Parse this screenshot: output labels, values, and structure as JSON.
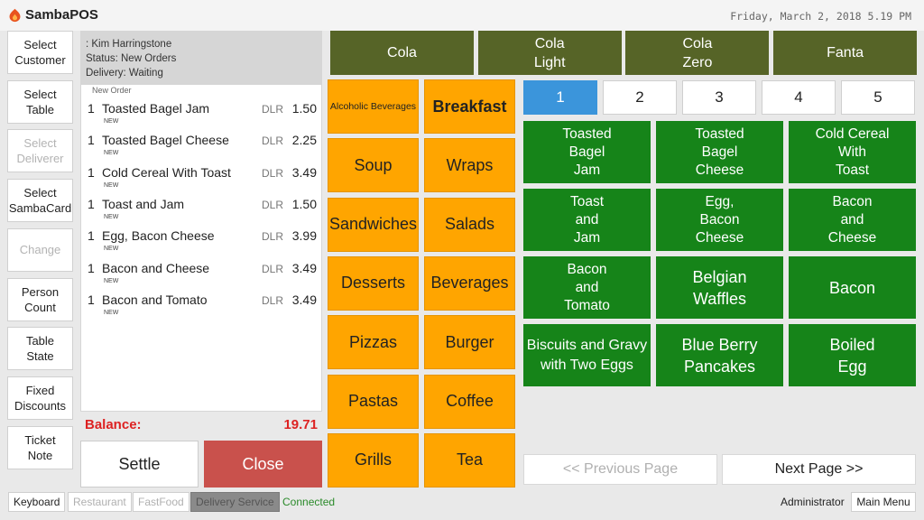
{
  "app": {
    "name": "SambaPOS",
    "datetime": "Friday, March 2, 2018 5.19 PM"
  },
  "commands": [
    {
      "label": "Select\nCustomer",
      "enabled": true
    },
    {
      "label": "Select\nTable",
      "enabled": true
    },
    {
      "label": "Select\nDeliverer",
      "enabled": false
    },
    {
      "label": "Select\nSambaCard",
      "enabled": true
    },
    {
      "label": "Change",
      "enabled": false
    },
    {
      "label": "Person\nCount",
      "enabled": true
    },
    {
      "label": "Table\nState",
      "enabled": true
    },
    {
      "label": "Fixed\nDiscounts",
      "enabled": true
    },
    {
      "label": "Ticket\nNote",
      "enabled": true
    }
  ],
  "ticket": {
    "customer": ": Kim Harringstone",
    "status": "Status: New Orders",
    "delivery": "Delivery: Waiting",
    "new_order_label": "New Order",
    "orders": [
      {
        "qty": "1",
        "name": "Toasted Bagel Jam",
        "tag": "NEW",
        "currency": "DLR",
        "price": "1.50"
      },
      {
        "qty": "1",
        "name": "Toasted Bagel Cheese",
        "tag": "NEW",
        "currency": "DLR",
        "price": "2.25"
      },
      {
        "qty": "1",
        "name": "Cold Cereal With Toast",
        "tag": "NEW",
        "currency": "DLR",
        "price": "3.49"
      },
      {
        "qty": "1",
        "name": "Toast and Jam",
        "tag": "NEW",
        "currency": "DLR",
        "price": "1.50"
      },
      {
        "qty": "1",
        "name": "Egg, Bacon Cheese",
        "tag": "NEW",
        "currency": "DLR",
        "price": "3.99"
      },
      {
        "qty": "1",
        "name": "Bacon and Cheese",
        "tag": "NEW",
        "currency": "DLR",
        "price": "3.49"
      },
      {
        "qty": "1",
        "name": "Bacon and Tomato",
        "tag": "NEW",
        "currency": "DLR",
        "price": "3.49"
      }
    ],
    "balance_label": "Balance:",
    "balance_value": "19.71",
    "settle_label": "Settle",
    "close_label": "Close"
  },
  "categories": [
    {
      "label": "Alcoholic Beverages",
      "style": "small"
    },
    {
      "label": "Breakfast",
      "style": "bold"
    },
    {
      "label": "Soup",
      "style": ""
    },
    {
      "label": "Wraps",
      "style": ""
    },
    {
      "label": "Sandwiches",
      "style": ""
    },
    {
      "label": "Salads",
      "style": ""
    },
    {
      "label": "Desserts",
      "style": ""
    },
    {
      "label": "Beverages",
      "style": ""
    },
    {
      "label": "Pizzas",
      "style": ""
    },
    {
      "label": "Burger",
      "style": ""
    },
    {
      "label": "Pastas",
      "style": ""
    },
    {
      "label": "Coffee",
      "style": ""
    },
    {
      "label": "Grills",
      "style": ""
    },
    {
      "label": "Tea",
      "style": ""
    }
  ],
  "top_products": [
    {
      "label": "Cola"
    },
    {
      "label": "Cola\nLight"
    },
    {
      "label": "Cola\nZero"
    },
    {
      "label": "Fanta"
    }
  ],
  "pages": [
    {
      "label": "1",
      "active": true
    },
    {
      "label": "2",
      "active": false
    },
    {
      "label": "3",
      "active": false
    },
    {
      "label": "4",
      "active": false
    },
    {
      "label": "5",
      "active": false
    }
  ],
  "products": [
    {
      "label": "Toasted\nBagel\nJam",
      "size": ""
    },
    {
      "label": "Toasted\nBagel\nCheese",
      "size": ""
    },
    {
      "label": "Cold Cereal\nWith\nToast",
      "size": ""
    },
    {
      "label": "Toast\nand\nJam",
      "size": ""
    },
    {
      "label": "Egg,\nBacon\nCheese",
      "size": ""
    },
    {
      "label": "Bacon\nand\nCheese",
      "size": ""
    },
    {
      "label": "Bacon\nand\nTomato",
      "size": ""
    },
    {
      "label": "Belgian\nWaffles",
      "size": "big"
    },
    {
      "label": "Bacon",
      "size": "big"
    },
    {
      "label": "Biscuits and Gravy\nwith Two Eggs",
      "size": "mid"
    },
    {
      "label": "Blue Berry\nPancakes",
      "size": "big"
    },
    {
      "label": "Boiled\nEgg",
      "size": "big"
    }
  ],
  "paging": {
    "prev_label": "<< Previous Page",
    "next_label": "Next Page >>"
  },
  "bottom_bar": {
    "keyboard": "Keyboard",
    "restaurant": "Restaurant",
    "fastfood": "FastFood",
    "delivery": "Delivery Service",
    "connected": "Connected",
    "user": "Administrator",
    "main_menu": "Main Menu"
  },
  "colors": {
    "category": "#ffa500",
    "product": "#168419",
    "top_product": "#566427",
    "page_active": "#3b95db",
    "close": "#c9514c",
    "balance": "#dd2222"
  }
}
